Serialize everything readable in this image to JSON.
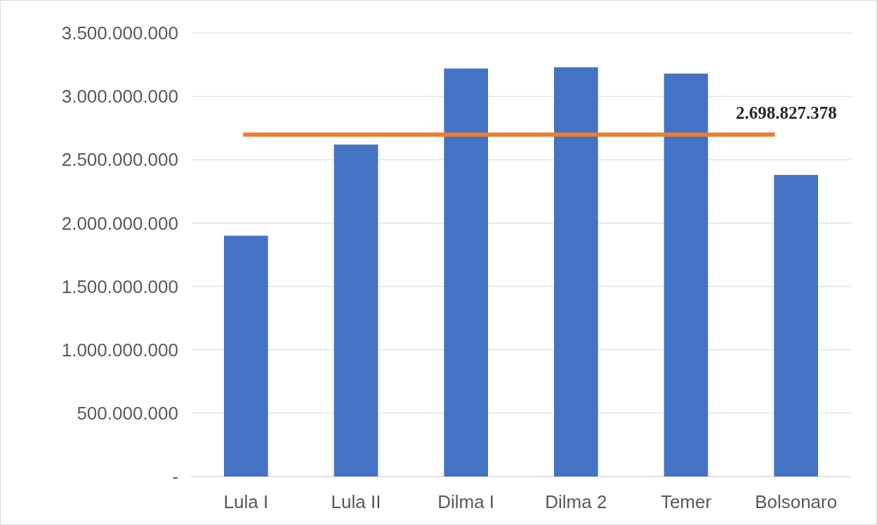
{
  "chart_data": {
    "type": "bar",
    "categories": [
      "Lula I",
      "Lula II",
      "Dilma I",
      "Dilma 2",
      "Temer",
      "Bolsonaro"
    ],
    "values": [
      1900000000,
      2620000000,
      3220000000,
      3230000000,
      3180000000,
      2380000000
    ],
    "color": "#4472c4",
    "ylim": [
      0,
      3500000000
    ],
    "yticks": [
      {
        "value": 0,
        "label": "-"
      },
      {
        "value": 500000000,
        "label": "500.000.000"
      },
      {
        "value": 1000000000,
        "label": "1.000.000.000"
      },
      {
        "value": 1500000000,
        "label": "1.500.000.000"
      },
      {
        "value": 2000000000,
        "label": "2.000.000.000"
      },
      {
        "value": 2500000000,
        "label": "2.500.000.000"
      },
      {
        "value": 3000000000,
        "label": "3.000.000.000"
      },
      {
        "value": 3500000000,
        "label": "3.500.000.000"
      }
    ],
    "grid": "y",
    "ref_lines": [
      {
        "axis": "y",
        "value": 2698827378,
        "label": "2.698.827.378",
        "color": "#ed7d31"
      }
    ]
  }
}
